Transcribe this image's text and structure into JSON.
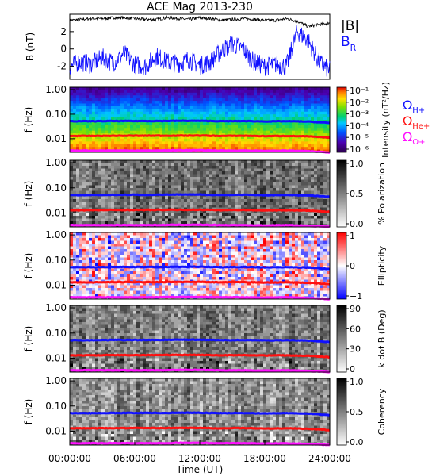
{
  "title": "ACE Mag 2013-230",
  "x_axis": {
    "label": "Time (UT)",
    "ticks": [
      "00:00:00",
      "06:00:00",
      "12:00:00",
      "18:00:00",
      "24:00:00"
    ]
  },
  "legends": {
    "bfield": [
      {
        "name": "|B|",
        "color": "#000000"
      },
      {
        "name": "B",
        "sub": "R",
        "color": "#1010ff"
      }
    ],
    "gyro": [
      {
        "name": "Ω",
        "sub": "H+",
        "color": "#1010ff"
      },
      {
        "name": "Ω",
        "sub": "He+",
        "color": "#ff1010"
      },
      {
        "name": "Ω",
        "sub": "O+",
        "color": "#ff10ff"
      }
    ]
  },
  "chart_data": [
    {
      "type": "line",
      "panel": "magnetic-field",
      "ylabel": "B (nT)",
      "yticks": [
        "2",
        "0",
        "-2"
      ],
      "ylim": [
        -3.5,
        4.0
      ],
      "x": [
        0,
        1,
        2,
        3,
        4,
        5,
        6,
        7,
        8,
        9,
        10,
        11,
        12,
        13,
        14,
        15,
        16,
        17,
        18,
        19,
        20,
        21,
        22,
        23,
        24
      ],
      "series": [
        {
          "name": "|B|",
          "color": "#000000",
          "values": [
            3.3,
            3.4,
            3.5,
            3.5,
            3.6,
            3.6,
            3.5,
            3.4,
            3.4,
            3.6,
            3.5,
            3.4,
            3.6,
            3.5,
            3.3,
            3.4,
            3.5,
            3.4,
            3.3,
            3.3,
            3.5,
            3.2,
            2.6,
            2.8,
            3.0
          ]
        },
        {
          "name": "B_R",
          "color": "#1010ff",
          "values": [
            -2.0,
            -1.5,
            -1.8,
            -1.0,
            -1.6,
            -0.5,
            -1.8,
            -2.0,
            -0.8,
            -1.5,
            -1.7,
            -1.2,
            -1.9,
            -1.5,
            -0.2,
            0.6,
            0.0,
            -1.5,
            -2.0,
            -1.8,
            -2.0,
            2.0,
            1.0,
            -1.5,
            -2.5
          ]
        }
      ]
    },
    {
      "type": "heatmap",
      "panel": "power-spectral-density",
      "ylabel": "f (Hz)",
      "yticks": [
        "1.00",
        "0.10",
        "0.01"
      ],
      "colorbar_label": "Intensity (nT²/Hz)",
      "colorbar_ticks": [
        "10⁻¹",
        "10⁻²",
        "10⁻³",
        "10⁻⁴",
        "10⁻⁵",
        "10⁻⁶"
      ],
      "colormap": "rainbow"
    },
    {
      "type": "heatmap",
      "panel": "polarization",
      "ylabel": "f (Hz)",
      "yticks": [
        "1.00",
        "0.10",
        "0.01"
      ],
      "colorbar_label": "% Polarization",
      "colorbar_ticks": [
        "1.0",
        "0.5",
        "0.0"
      ],
      "colormap": "gray"
    },
    {
      "type": "heatmap",
      "panel": "ellipticity",
      "ylabel": "f (Hz)",
      "yticks": [
        "1.00",
        "0.10",
        "0.01"
      ],
      "colorbar_label": "Ellipticity",
      "colorbar_ticks": [
        "1",
        "0",
        "−1"
      ],
      "colormap": "blue-white-red"
    },
    {
      "type": "heatmap",
      "panel": "wave-normal-angle",
      "ylabel": "f (Hz)",
      "yticks": [
        "1.00",
        "0.10",
        "0.01"
      ],
      "colorbar_label": "k dot B (Deg)",
      "colorbar_ticks": [
        "90",
        "60",
        "30",
        "0"
      ],
      "colormap": "gray"
    },
    {
      "type": "heatmap",
      "panel": "coherency",
      "ylabel": "f (Hz)",
      "yticks": [
        "1.00",
        "0.10",
        "0.01"
      ],
      "colorbar_label": "Coherency",
      "colorbar_ticks": [
        "1.0",
        "0.5",
        "0.0"
      ],
      "colormap": "gray"
    }
  ],
  "gyrofrequency_lines": {
    "x": [
      0,
      2,
      4,
      6,
      8,
      10,
      12,
      14,
      16,
      18,
      20,
      22,
      24
    ],
    "H+": [
      0.052,
      0.052,
      0.053,
      0.053,
      0.053,
      0.054,
      0.054,
      0.052,
      0.053,
      0.051,
      0.052,
      0.05,
      0.044
    ],
    "He+": [
      0.013,
      0.013,
      0.0132,
      0.0133,
      0.0133,
      0.0134,
      0.0135,
      0.013,
      0.0133,
      0.0128,
      0.013,
      0.0125,
      0.011
    ],
    "O+": [
      0.0033,
      0.0033,
      0.0033,
      0.0033,
      0.0033,
      0.0034,
      0.0034,
      0.0033,
      0.0033,
      0.0032,
      0.0033,
      0.0031,
      0.0028
    ]
  }
}
